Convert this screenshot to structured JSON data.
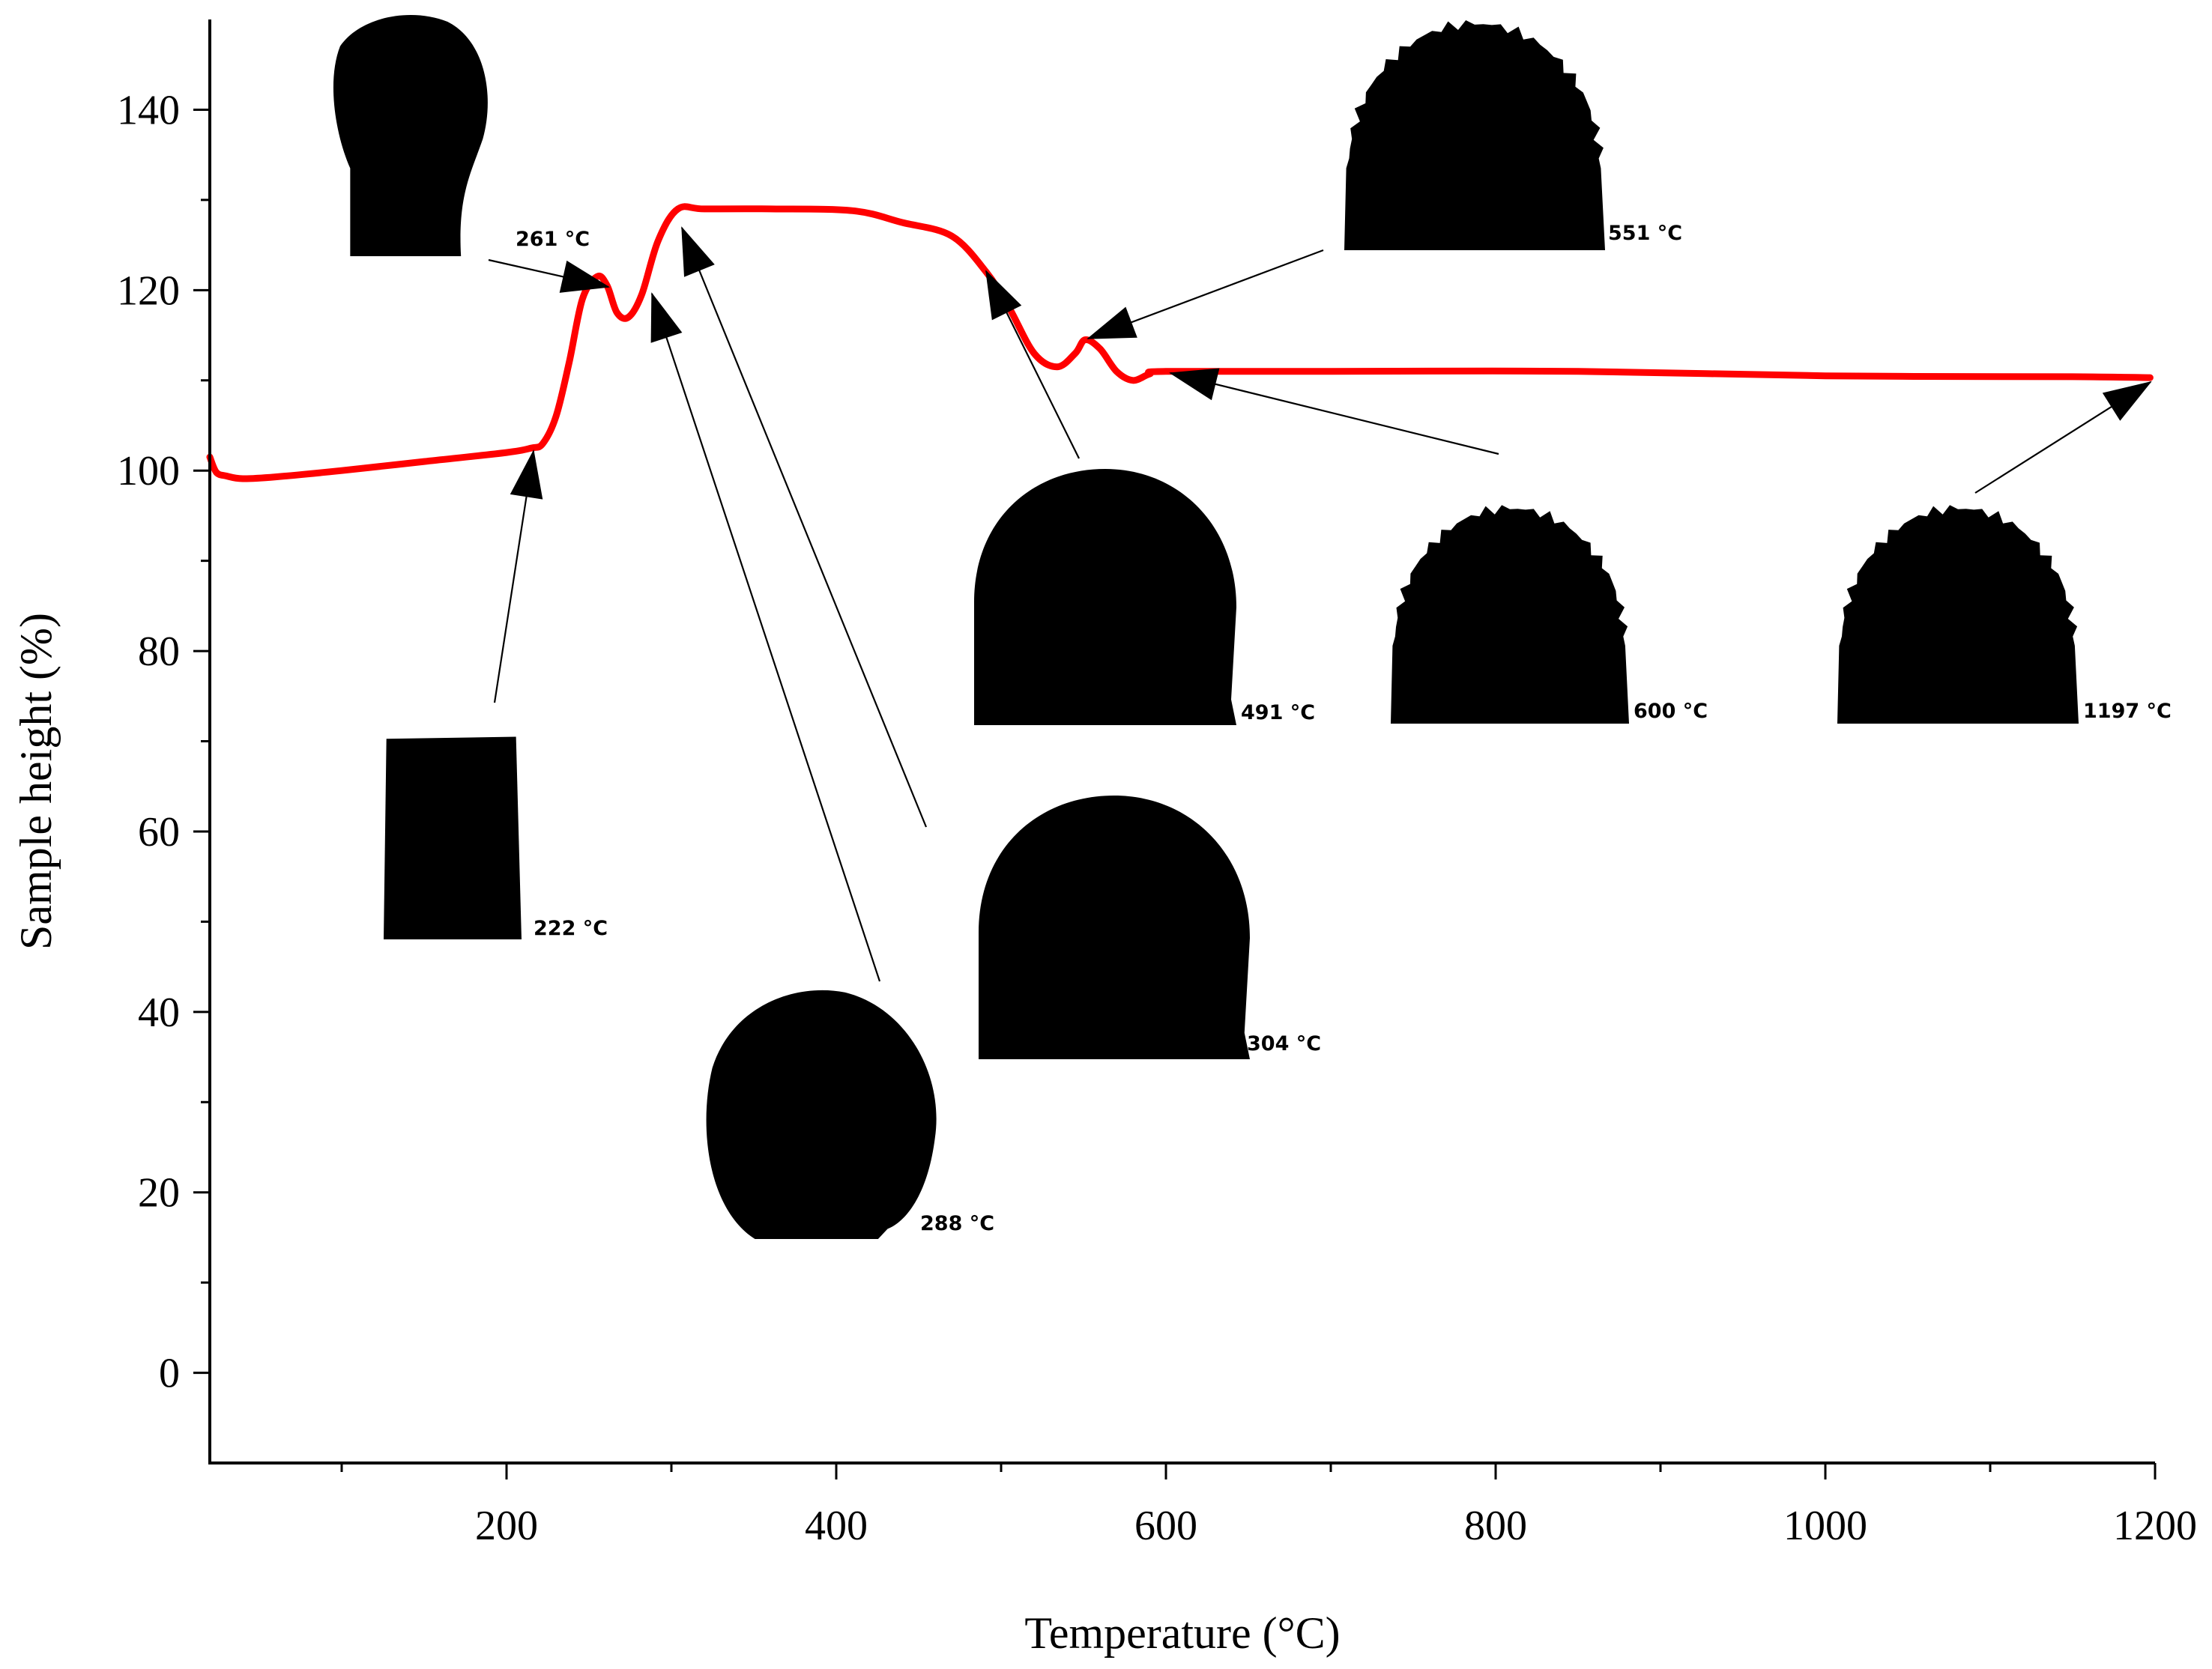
{
  "chart_data": {
    "type": "line",
    "xlabel": "Temperature (°C)",
    "ylabel": "Sample height (%)",
    "xlim": [
      20,
      1200
    ],
    "ylim": [
      -10,
      150
    ],
    "x_ticks": [
      200,
      400,
      600,
      800,
      1000,
      1200
    ],
    "y_ticks": [
      0,
      20,
      40,
      60,
      80,
      100,
      120,
      140
    ],
    "grid": false,
    "line_color": "#ff0000",
    "series": [
      {
        "points": [
          [
            20,
            101.5
          ],
          [
            24,
            99.8
          ],
          [
            30,
            99.4
          ],
          [
            40,
            99.1
          ],
          [
            60,
            99.3
          ],
          [
            100,
            100.0
          ],
          [
            150,
            101.0
          ],
          [
            200,
            102.0
          ],
          [
            215,
            102.5
          ],
          [
            222,
            103.0
          ],
          [
            230,
            106
          ],
          [
            238,
            112
          ],
          [
            246,
            119
          ],
          [
            255,
            121.5
          ],
          [
            261,
            120.5
          ],
          [
            267,
            117.5
          ],
          [
            274,
            117.0
          ],
          [
            282,
            119.5
          ],
          [
            292,
            125.5
          ],
          [
            304,
            129.0
          ],
          [
            320,
            129.0
          ],
          [
            360,
            129.0
          ],
          [
            410,
            128.8
          ],
          [
            440,
            127.5
          ],
          [
            470,
            126.0
          ],
          [
            491,
            122.0
          ],
          [
            505,
            118.0
          ],
          [
            520,
            113.0
          ],
          [
            534,
            111.5
          ],
          [
            545,
            113.0
          ],
          [
            551,
            114.5
          ],
          [
            560,
            113.5
          ],
          [
            570,
            111.0
          ],
          [
            580,
            110.0
          ],
          [
            590,
            110.7
          ],
          [
            600,
            111.0
          ],
          [
            700,
            111.0
          ],
          [
            850,
            111.0
          ],
          [
            1000,
            110.5
          ],
          [
            1150,
            110.4
          ],
          [
            1197,
            110.3
          ]
        ]
      }
    ],
    "annotations": [
      {
        "label": "222 °C",
        "x": 222,
        "y": 103.0,
        "shape": "cylinder"
      },
      {
        "label": "261 °C",
        "x": 261,
        "y": 120.5,
        "shape": "bulb"
      },
      {
        "label": "288 °C",
        "x": 288,
        "y": 118.0,
        "shape": "oval"
      },
      {
        "label": "304 °C",
        "x": 304,
        "y": 129.0,
        "shape": "dome"
      },
      {
        "label": "491 °C",
        "x": 491,
        "y": 122.0,
        "shape": "dome"
      },
      {
        "label": "551 °C",
        "x": 551,
        "y": 114.5,
        "shape": "rough"
      },
      {
        "label": "600 °C",
        "x": 600,
        "y": 111.0,
        "shape": "rough"
      },
      {
        "label": "1197 °C",
        "x": 1197,
        "y": 110.3,
        "shape": "rough"
      }
    ]
  }
}
